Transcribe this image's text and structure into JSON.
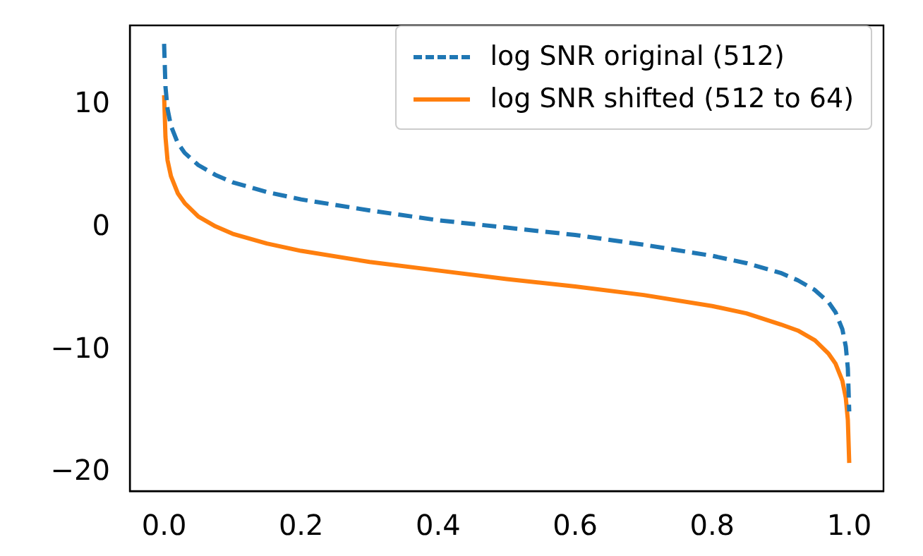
{
  "chart_data": {
    "type": "line",
    "x": [
      0,
      0.002,
      0.005,
      0.01,
      0.02,
      0.03,
      0.05,
      0.075,
      0.1,
      0.15,
      0.2,
      0.3,
      0.4,
      0.5,
      0.6,
      0.7,
      0.8,
      0.85,
      0.9,
      0.925,
      0.95,
      0.97,
      0.98,
      0.99,
      0.995,
      0.998,
      1
    ],
    "series": [
      {
        "name": "log SNR original (512)",
        "color": "#1f77b4",
        "line_style": "dashed",
        "values": [
          15,
          11.5,
          9.7,
          8.3,
          6.9,
          6.1,
          5.1,
          4.3,
          3.7,
          2.9,
          2.3,
          1.4,
          0.6,
          0,
          -0.6,
          -1.4,
          -2.3,
          -2.9,
          -3.7,
          -4.3,
          -5.1,
          -6.1,
          -6.9,
          -8.3,
          -9.7,
          -11.5,
          -15
        ]
      },
      {
        "name": "log SNR shifted (512 to 64)",
        "color": "#ff7f0e",
        "line_style": "solid",
        "values": [
          10.8,
          7.4,
          5.5,
          4.2,
          2.8,
          2,
          0.9,
          0.1,
          -0.5,
          -1.3,
          -1.9,
          -2.8,
          -3.5,
          -4.2,
          -4.8,
          -5.5,
          -6.4,
          -7,
          -7.9,
          -8.4,
          -9.2,
          -10.3,
          -11.1,
          -12.5,
          -13.9,
          -15.7,
          -19.2
        ]
      }
    ],
    "xlim": [
      -0.05,
      1.05
    ],
    "ylim": [
      -21.5,
      16.5
    ],
    "xticks": [
      {
        "value": 0,
        "label": "0.0"
      },
      {
        "value": 0.2,
        "label": "0.2"
      },
      {
        "value": 0.4,
        "label": "0.4"
      },
      {
        "value": 0.6,
        "label": "0.6"
      },
      {
        "value": 0.8,
        "label": "0.8"
      },
      {
        "value": 1,
        "label": "1.0"
      }
    ],
    "yticks": [
      {
        "value": -20,
        "label": "−20"
      },
      {
        "value": -10,
        "label": "−10"
      },
      {
        "value": 0,
        "label": "0"
      },
      {
        "value": 10,
        "label": "10"
      }
    ],
    "grid": false,
    "legend": "top right",
    "marker": "none"
  }
}
